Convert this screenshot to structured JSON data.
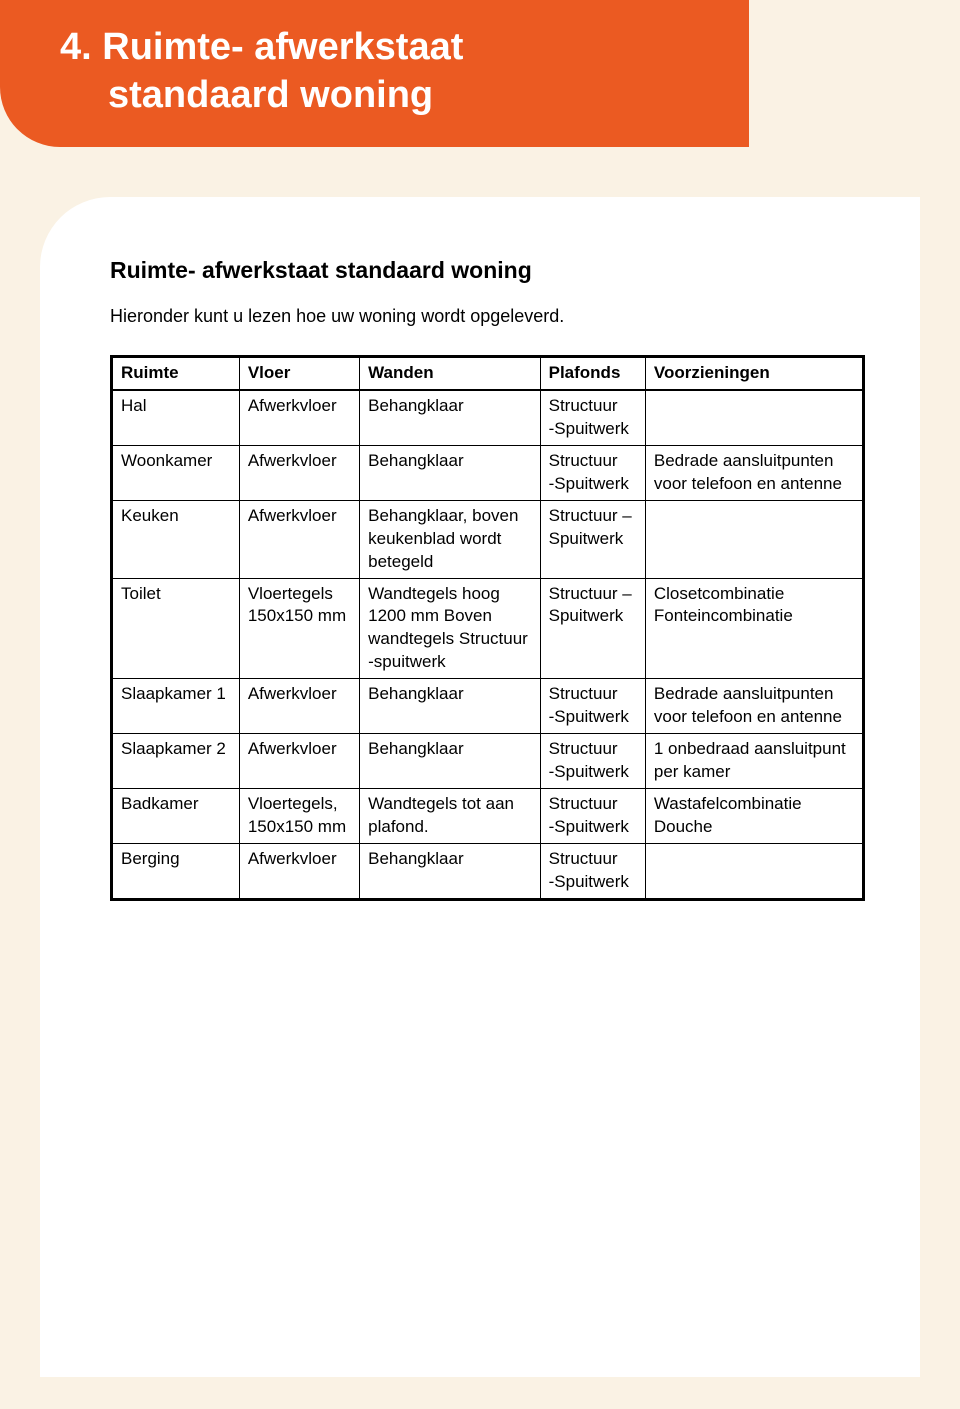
{
  "header": {
    "number": "4.",
    "title_line1": "Ruimte- afwerkstaat",
    "title_line2": "standaard woning"
  },
  "content": {
    "subheading": "Ruimte- afwerkstaat standaard woning",
    "intro": "Hieronder kunt u lezen hoe uw woning wordt opgeleverd."
  },
  "table": {
    "columns": [
      "Ruimte",
      "Vloer",
      "Wanden",
      "Plafonds",
      "Voorzieningen"
    ],
    "rows": [
      {
        "ruimte": "Hal",
        "vloer": "Afwerkvloer",
        "wanden": "Behangklaar",
        "plafonds": "Structuur\n-Spuitwerk",
        "voorz": ""
      },
      {
        "ruimte": "Woonkamer",
        "vloer": "Afwerkvloer",
        "wanden": "Behangklaar",
        "plafonds": "Structuur\n-Spuitwerk",
        "voorz": "Bedrade aansluitpunten voor telefoon en antenne"
      },
      {
        "ruimte": "Keuken",
        "vloer": "Afwerkvloer",
        "wanden": "Behangklaar, boven keukenblad wordt betegeld",
        "plafonds": "Structuur – Spuitwerk",
        "voorz": ""
      },
      {
        "ruimte": "Toilet",
        "vloer": "Vloertegels 150x150 mm",
        "wanden": "Wandtegels hoog 1200 mm Boven wandtegels Structuur -spuitwerk",
        "plafonds": "Structuur – Spuitwerk",
        "voorz": "Closetcombinatie Fonteincombinatie"
      },
      {
        "ruimte": "Slaapkamer 1",
        "vloer": "Afwerkvloer",
        "wanden": "Behangklaar",
        "plafonds": "Structuur\n-Spuitwerk",
        "voorz": "Bedrade aansluitpunten voor telefoon en antenne"
      },
      {
        "ruimte": "Slaapkamer 2",
        "vloer": "Afwerkvloer",
        "wanden": "Behangklaar",
        "plafonds": "Structuur\n-Spuitwerk",
        "voorz": "1 onbedraad aansluit­punt per kamer"
      },
      {
        "ruimte": "Badkamer",
        "vloer": "Vloertegels, 150x150 mm",
        "wanden": "Wandtegels tot aan plafond.",
        "plafonds": "Structuur\n-Spuitwerk",
        "voorz": "Wastafelcombinatie Douche"
      },
      {
        "ruimte": "Berging",
        "vloer": "Afwerkvloer",
        "wanden": "Behangklaar",
        "plafonds": "Structuur\n-Spuitwerk",
        "voorz": ""
      }
    ]
  },
  "colors": {
    "page_bg": "#faf2e4",
    "banner_bg": "#eb5a22",
    "banner_text": "#ffffff",
    "content_bg": "#ffffff",
    "text": "#000000",
    "table_border": "#000000"
  }
}
